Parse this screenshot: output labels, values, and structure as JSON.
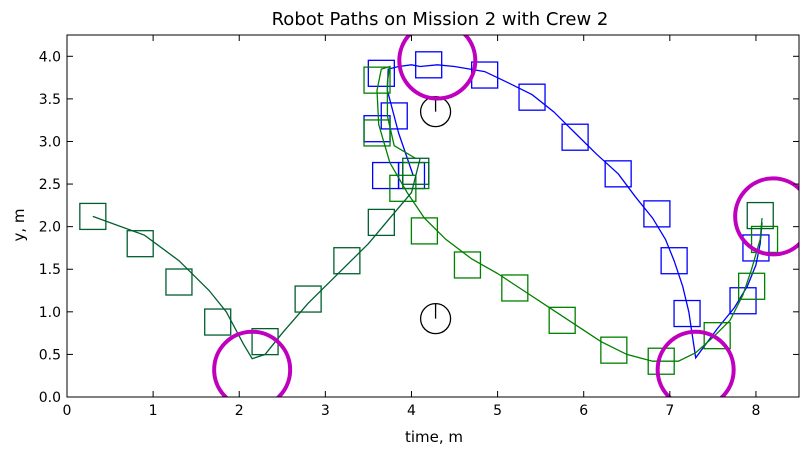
{
  "chart_data": {
    "type": "scatter",
    "title": "Robot Paths on Mission 2 with Crew 2",
    "xlabel": "time, m",
    "ylabel": "y, m",
    "xlim": [
      0,
      8.5
    ],
    "ylim": [
      0,
      4.25
    ],
    "xticks": [
      "0",
      "1",
      "2",
      "3",
      "4",
      "5",
      "6",
      "7",
      "8"
    ],
    "yticks": [
      "0.0",
      "0.5",
      "1.0",
      "1.5",
      "2.0",
      "2.5",
      "3.0",
      "3.5",
      "4.0"
    ],
    "grid": false,
    "colors": {
      "blue": "#0000ff",
      "green": "#008000",
      "dark_green": "#005f2f",
      "magenta": "#bf00bf",
      "black": "#000000"
    },
    "series": [
      {
        "color": "#0000ff",
        "line": [
          [
            4.02,
            2.6
          ],
          [
            3.85,
            3.1
          ],
          [
            3.72,
            3.6
          ],
          [
            3.73,
            3.85
          ],
          [
            3.85,
            3.88
          ],
          [
            4.0,
            3.9
          ],
          [
            4.1,
            3.88
          ],
          [
            4.3,
            3.9
          ],
          [
            4.5,
            3.88
          ],
          [
            4.85,
            3.82
          ],
          [
            5.1,
            3.7
          ],
          [
            5.4,
            3.55
          ],
          [
            5.65,
            3.35
          ],
          [
            5.9,
            3.1
          ],
          [
            6.15,
            2.85
          ],
          [
            6.4,
            2.62
          ],
          [
            6.6,
            2.35
          ],
          [
            6.8,
            2.1
          ],
          [
            6.95,
            1.85
          ],
          [
            7.05,
            1.6
          ],
          [
            7.15,
            1.3
          ],
          [
            7.22,
            1.0
          ],
          [
            7.3,
            0.46
          ],
          [
            7.55,
            0.8
          ],
          [
            7.75,
            1.05
          ],
          [
            7.9,
            1.3
          ],
          [
            8.0,
            1.55
          ],
          [
            8.05,
            1.8
          ],
          [
            8.07,
            2.05
          ]
        ],
        "markers": [
          [
            4.0,
            2.6
          ],
          [
            3.8,
            3.3
          ],
          [
            3.65,
            3.8
          ],
          [
            4.2,
            3.9
          ],
          [
            4.85,
            3.78
          ],
          [
            5.4,
            3.52
          ],
          [
            5.9,
            3.05
          ],
          [
            6.4,
            2.62
          ],
          [
            6.85,
            2.15
          ],
          [
            7.05,
            1.6
          ],
          [
            7.2,
            0.98
          ],
          [
            7.85,
            1.13
          ],
          [
            8.0,
            1.75
          ],
          [
            3.7,
            2.6
          ],
          [
            3.6,
            3.15
          ]
        ]
      },
      {
        "color": "#008000",
        "line": [
          [
            4.05,
            2.8
          ],
          [
            3.8,
            2.95
          ],
          [
            3.72,
            3.3
          ],
          [
            3.72,
            3.7
          ],
          [
            3.75,
            3.88
          ],
          [
            3.65,
            3.85
          ],
          [
            3.6,
            3.6
          ],
          [
            3.62,
            3.2
          ],
          [
            3.75,
            2.75
          ],
          [
            3.95,
            2.4
          ],
          [
            4.15,
            2.1
          ],
          [
            4.4,
            1.85
          ],
          [
            4.7,
            1.62
          ],
          [
            5.0,
            1.45
          ],
          [
            5.3,
            1.25
          ],
          [
            5.6,
            1.05
          ],
          [
            5.9,
            0.85
          ],
          [
            6.2,
            0.65
          ],
          [
            6.5,
            0.5
          ],
          [
            6.8,
            0.42
          ],
          [
            7.1,
            0.42
          ],
          [
            7.3,
            0.52
          ],
          [
            7.5,
            0.7
          ],
          [
            7.7,
            0.9
          ],
          [
            7.85,
            1.2
          ],
          [
            7.95,
            1.5
          ],
          [
            8.05,
            1.85
          ],
          [
            8.07,
            2.1
          ]
        ],
        "markers": [
          [
            3.6,
            3.72
          ],
          [
            3.6,
            3.1
          ],
          [
            3.9,
            2.45
          ],
          [
            4.05,
            2.6
          ],
          [
            4.15,
            1.95
          ],
          [
            4.65,
            1.55
          ],
          [
            5.2,
            1.28
          ],
          [
            5.75,
            0.9
          ],
          [
            6.35,
            0.55
          ],
          [
            6.9,
            0.42
          ],
          [
            7.55,
            0.72
          ],
          [
            7.95,
            1.3
          ],
          [
            8.1,
            1.85
          ]
        ]
      },
      {
        "color": "#005f2f",
        "line": [
          [
            0.3,
            2.12
          ],
          [
            0.9,
            1.9
          ],
          [
            1.3,
            1.6
          ],
          [
            1.65,
            1.25
          ],
          [
            1.85,
            1.0
          ],
          [
            2.05,
            0.62
          ],
          [
            2.15,
            0.45
          ],
          [
            2.3,
            0.5
          ],
          [
            2.5,
            0.75
          ],
          [
            2.8,
            1.1
          ],
          [
            3.2,
            1.5
          ],
          [
            3.5,
            1.8
          ],
          [
            3.75,
            2.1
          ],
          [
            4.0,
            2.4
          ],
          [
            4.1,
            2.8
          ]
        ],
        "markers": [
          [
            0.3,
            2.12
          ],
          [
            0.85,
            1.8
          ],
          [
            1.3,
            1.35
          ],
          [
            1.75,
            0.88
          ],
          [
            2.3,
            0.65
          ],
          [
            2.8,
            1.15
          ],
          [
            3.25,
            1.6
          ],
          [
            3.65,
            2.05
          ],
          [
            4.05,
            2.65
          ],
          [
            8.05,
            2.13
          ]
        ]
      }
    ],
    "obstacles": [
      [
        4.28,
        3.35
      ],
      [
        4.28,
        0.92
      ]
    ],
    "zones": [
      [
        2.15,
        0.32
      ],
      [
        4.3,
        3.95
      ],
      [
        7.3,
        0.32
      ],
      [
        8.2,
        2.12
      ]
    ]
  }
}
